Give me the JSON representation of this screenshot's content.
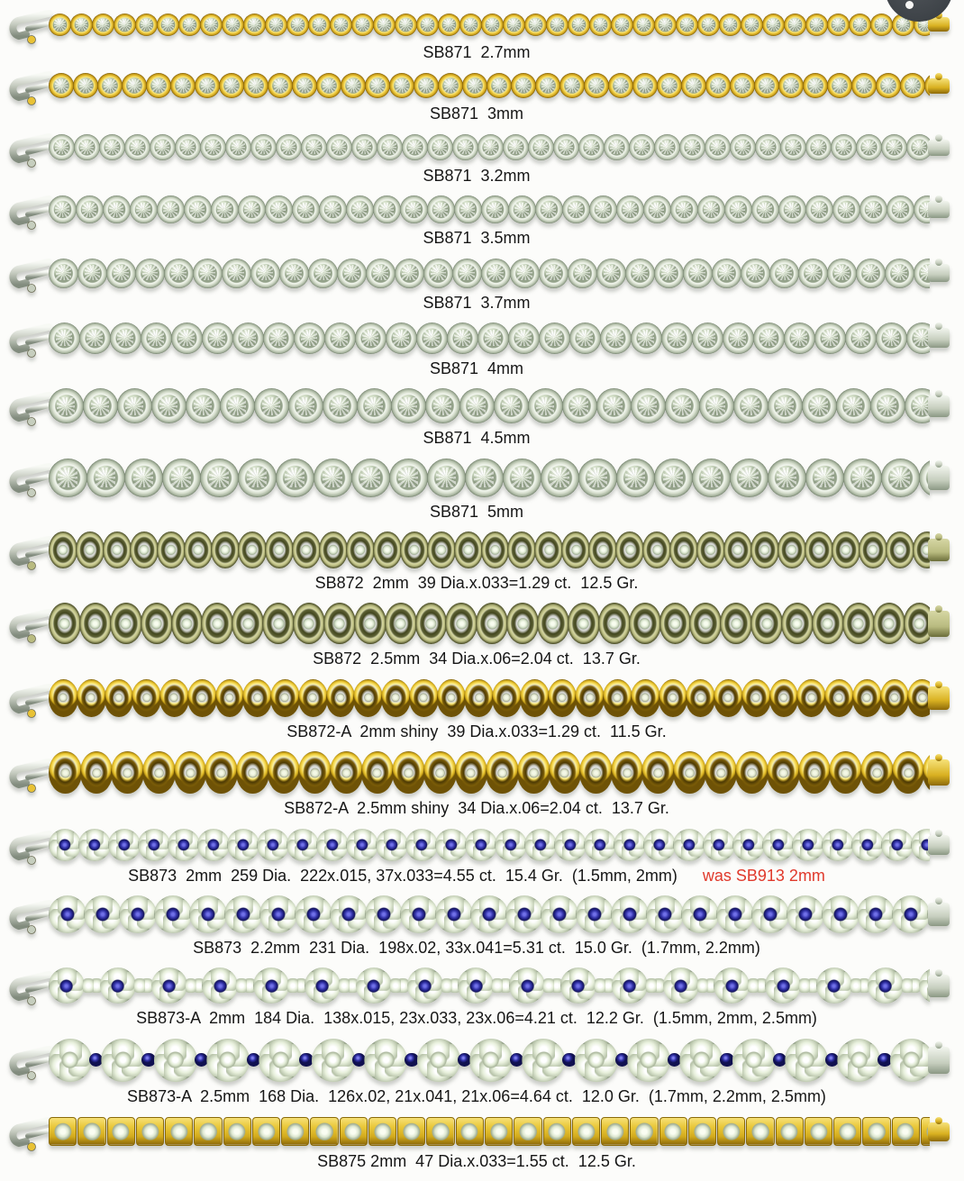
{
  "page": {
    "kind": "scanned jewelry catalog page",
    "background": "#fcfcfa",
    "text_color": "#161616",
    "note_color": "#e0392b",
    "hole_punch_color": "#3e4348"
  },
  "colors": {
    "gold": "#e9c235",
    "shiny_gold": "#f0ce3e",
    "antique_gold": "#b9bb80",
    "white_metal": "#d5ddcc",
    "diamond": "#e8f0dc",
    "sapphire": "#2e2ea2"
  },
  "rows": [
    {
      "label": "SB871  2.7mm",
      "style": "round",
      "metal": "gold",
      "link": 25
    },
    {
      "label": "SB871  3mm",
      "style": "round",
      "metal": "gold",
      "link": 28
    },
    {
      "label": "SB871  3.2mm",
      "style": "round",
      "metal": "white",
      "link": 29
    },
    {
      "label": "SB871  3.5mm",
      "style": "round",
      "metal": "white",
      "link": 31
    },
    {
      "label": "SB871  3.7mm",
      "style": "round",
      "metal": "white",
      "link": 33
    },
    {
      "label": "SB871  4mm",
      "style": "round",
      "metal": "white",
      "link": 35
    },
    {
      "label": "SB871  4.5mm",
      "style": "round",
      "metal": "white",
      "link": 39
    },
    {
      "label": "SB871  5mm",
      "style": "round",
      "metal": "white",
      "link": 43
    },
    {
      "label": "SB872  2mm  39 Dia.x.033=1.29 ct.  12.5 Gr.",
      "style": "oval-milgrain",
      "metal": "antique",
      "link": 41
    },
    {
      "label": "SB872  2.5mm  34 Dia.x.06=2.04 ct.  13.7 Gr.",
      "style": "oval-milgrain",
      "metal": "antique",
      "link": 46
    },
    {
      "label": "SB872-A  2mm shiny  39 Dia.x.033=1.29 ct.  11.5 Gr.",
      "style": "oval-shiny",
      "metal": "gold",
      "link": 42
    },
    {
      "label": "SB872-A  2.5mm shiny  34 Dia.x.06=2.04 ct.  13.7 Gr.",
      "style": "oval-shiny",
      "metal": "gold",
      "link": 47
    },
    {
      "label": "SB873  2mm  259 Dia.  222x.015, 37x.033=4.55 ct.  15.4 Gr.  (1.5mm, 2mm)",
      "note": "was SB913 2mm",
      "style": "cluster",
      "metal": "white",
      "link": 36
    },
    {
      "label": "SB873  2.2mm  231 Dia.  198x.02, 33x.041=5.31 ct.  15.0 Gr.  (1.7mm, 2.2mm)",
      "style": "cluster",
      "metal": "white",
      "link": 42
    },
    {
      "label": "SB873-A  2mm  184 Dia.  138x.015, 23x.033, 23x.06=4.21 ct.  12.2 Gr.  (1.5mm, 2mm, 2.5mm)",
      "style": "cluster-alt",
      "metal": "white",
      "link": 40
    },
    {
      "label": "SB873-A  2.5mm  168 Dia.  126x.02, 21x.041, 21x.06=4.64 ct.  12.0 Gr.  (1.7mm, 2.2mm, 2.5mm)",
      "style": "cluster-alt2",
      "metal": "white",
      "link": 48
    },
    {
      "label": "SB875 2mm  47 Dia.x.033=1.55 ct.  12.5 Gr.",
      "style": "square",
      "metal": "gold",
      "link": 34
    }
  ]
}
